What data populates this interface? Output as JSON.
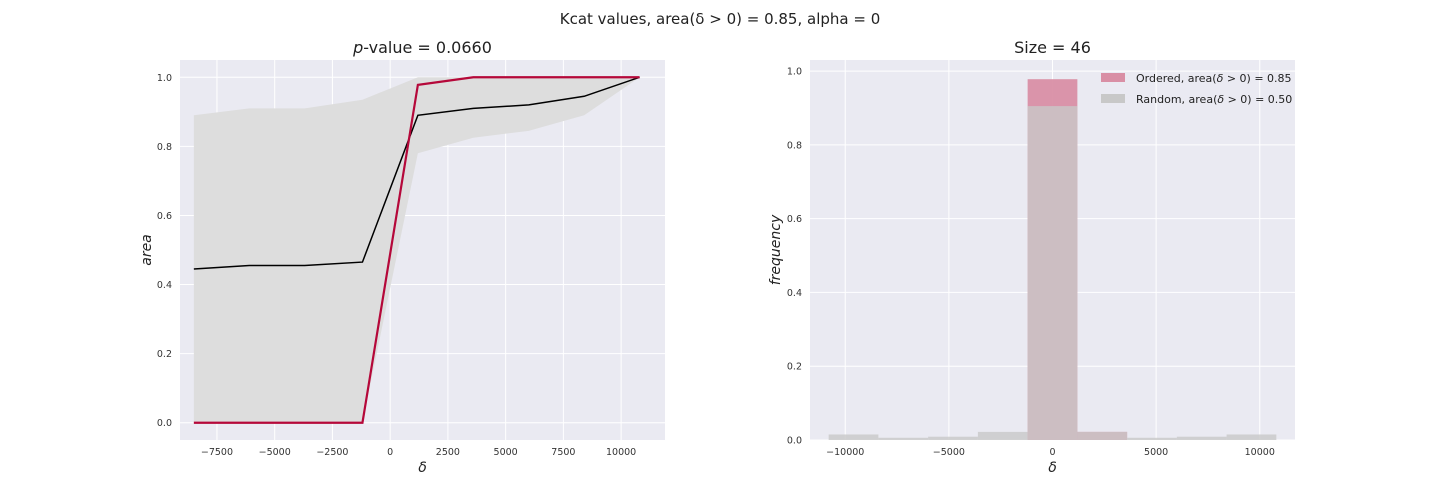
{
  "figure": {
    "suptitle": "Kcat values, area(δ > 0) = 0.85, alpha = 0"
  },
  "chart_data": [
    {
      "type": "line",
      "title": "p-value = 0.0660",
      "title_parts": {
        "italic": "p",
        "rest": "-value = 0.0660"
      },
      "xlabel": "δ",
      "ylabel": "area",
      "xlim": [
        -9100,
        11900
      ],
      "ylim": [
        -0.05,
        1.05
      ],
      "xticks": [
        -7500,
        -5000,
        -2500,
        0,
        2500,
        5000,
        7500,
        10000
      ],
      "xtick_labels": [
        "−7500",
        "−5000",
        "−2500",
        "0",
        "2500",
        "5000",
        "7500",
        "10000"
      ],
      "yticks": [
        0.0,
        0.2,
        0.4,
        0.6,
        0.8,
        1.0
      ],
      "ytick_labels": [
        "0.0",
        "0.2",
        "0.4",
        "0.6",
        "0.8",
        "1.0"
      ],
      "grid": true,
      "x": [
        -8500,
        -6100,
        -3700,
        -1200,
        1200,
        3600,
        6000,
        8400,
        10800
      ],
      "band": {
        "lower": [
          0.0,
          0.0,
          0.0,
          0.0,
          0.78,
          0.825,
          0.845,
          0.89,
          1.0
        ],
        "upper": [
          0.89,
          0.91,
          0.91,
          0.935,
          1.0,
          1.0,
          1.0,
          1.0,
          1.0
        ],
        "color": "#dddddd"
      },
      "series": [
        {
          "values": [
            0.445,
            0.455,
            0.455,
            0.465,
            0.89,
            0.91,
            0.92,
            0.945,
            1.0
          ],
          "color": "#000000"
        },
        {
          "values": [
            0.0,
            0.0,
            0.0,
            0.0,
            0.978,
            1.0,
            1.0,
            1.0,
            1.0
          ],
          "color": "#b5083a"
        }
      ]
    },
    {
      "type": "bar",
      "title": "Size = 46",
      "xlabel": "δ",
      "ylabel": "frequency",
      "xlim": [
        -11700,
        11700
      ],
      "ylim": [
        0.0,
        1.03
      ],
      "xticks": [
        -10000,
        -5000,
        0,
        5000,
        10000
      ],
      "xtick_labels": [
        "−10000",
        "−5000",
        "0",
        "5000",
        "10000"
      ],
      "yticks": [
        0.0,
        0.2,
        0.4,
        0.6,
        0.8,
        1.0
      ],
      "ytick_labels": [
        "0.0",
        "0.2",
        "0.4",
        "0.6",
        "0.8",
        "1.0"
      ],
      "grid": true,
      "legend_position": "top-right",
      "bin_edges": [
        -10800,
        -8400,
        -6000,
        -3600,
        -1200,
        1200,
        3600,
        6000,
        8400,
        10800
      ],
      "series": [
        {
          "name": "Ordered, area(δ > 0) = 0.85",
          "name_parts": [
            "Ordered, area(",
            "δ",
            " > 0) = 0.85"
          ],
          "values": [
            0.0,
            0.0,
            0.0,
            0.0,
            0.978,
            0.022,
            0.0,
            0.0,
            0.0
          ],
          "color": "#d98fa5"
        },
        {
          "name": "Random, area(δ > 0) = 0.50",
          "name_parts": [
            "Random, area(",
            "δ",
            " > 0) = 0.50"
          ],
          "values": [
            0.015,
            0.006,
            0.009,
            0.022,
            0.905,
            0.022,
            0.006,
            0.009,
            0.015
          ],
          "color": "#c8c8c8"
        }
      ]
    }
  ]
}
